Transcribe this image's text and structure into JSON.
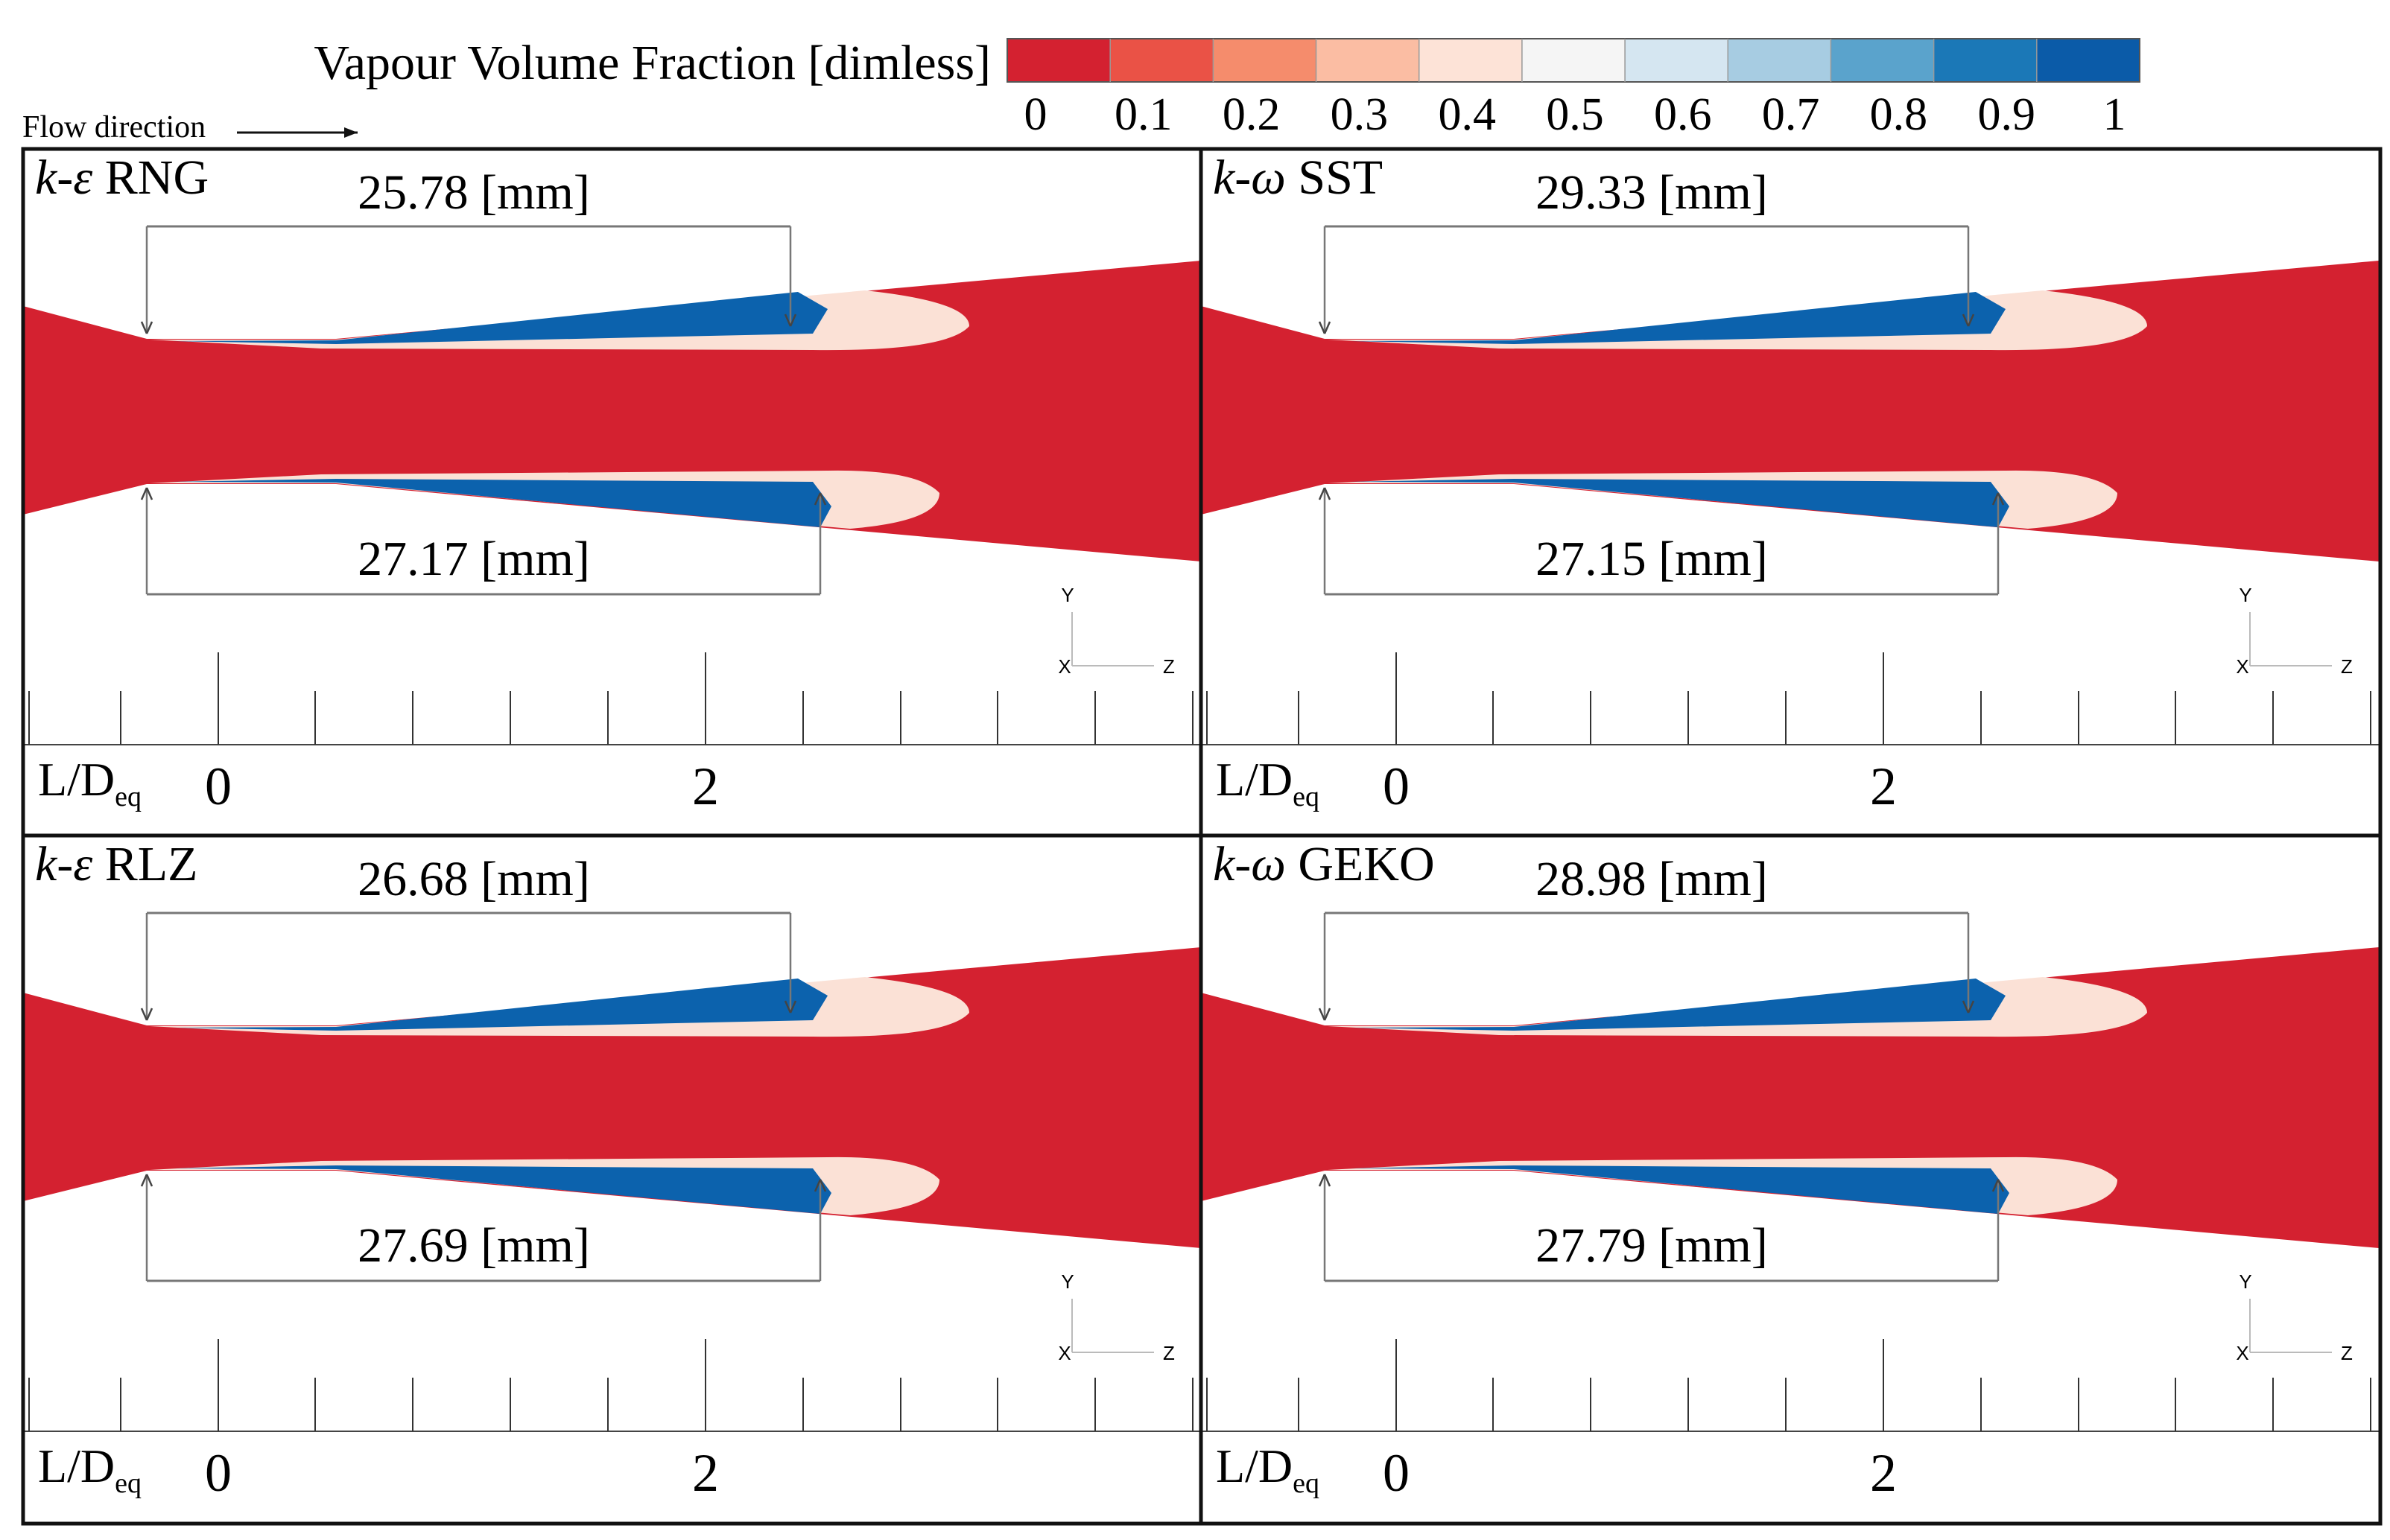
{
  "legend": {
    "title": "Vapour Volume Fraction [dimless]",
    "ticks": [
      "0",
      "0.1",
      "0.2",
      "0.3",
      "0.4",
      "0.5",
      "0.6",
      "0.7",
      "0.8",
      "0.9",
      "1"
    ],
    "colors": [
      "#d42130",
      "#ea5246",
      "#f58c6c",
      "#fbbda3",
      "#fde3d7",
      "#f5f5f5",
      "#d5e6f1",
      "#a7cce2",
      "#5aa3cc",
      "#1b78b7",
      "#0b5ba8"
    ]
  },
  "flow_label": "Flow direction",
  "colors": {
    "liquid": "#d42130",
    "vapour": "#0c62ad",
    "mixing": "#fbe1d6"
  },
  "axis": {
    "label_main": "L/D",
    "label_sub": "eq",
    "tick_labels": [
      "0",
      "2"
    ]
  },
  "panels": [
    {
      "id": "rng",
      "model_prefix": "k-ε",
      "model_suffix": " RNG",
      "top_length": "25.78 [mm]",
      "bottom_length": "27.17 [mm]"
    },
    {
      "id": "sst",
      "model_prefix": "k-ω",
      "model_suffix": " SST",
      "top_length": "29.33 [mm]",
      "bottom_length": "27.15 [mm]"
    },
    {
      "id": "rlz",
      "model_prefix": "k-ε",
      "model_suffix": " RLZ",
      "top_length": "26.68 [mm]",
      "bottom_length": "27.69 [mm]"
    },
    {
      "id": "geko",
      "model_prefix": "k-ω",
      "model_suffix": " GEKO",
      "top_length": "28.98 [mm]",
      "bottom_length": "27.79 [mm]"
    }
  ],
  "triad": {
    "y": "Y",
    "x": "X",
    "z": "Z"
  }
}
